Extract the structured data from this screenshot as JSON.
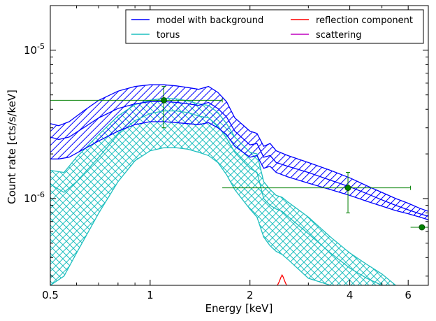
{
  "chart_data": {
    "type": "line",
    "xlabel": "Energy [keV]",
    "ylabel": "Count rate [cts/s/keV]",
    "xscale": "log",
    "yscale": "log",
    "xlim": [
      0.5,
      6.9
    ],
    "ylim": [
      2.6e-07,
      2e-05
    ],
    "x_ticks": [
      {
        "value": 0.5,
        "label": "0.5"
      },
      {
        "value": 1,
        "label": "1"
      },
      {
        "value": 2,
        "label": "2"
      },
      {
        "value": 4,
        "label": "4"
      },
      {
        "value": 6,
        "label": "6"
      }
    ],
    "y_ticks": [
      {
        "value": 1e-06,
        "base": "10",
        "exp": "-6"
      },
      {
        "value": 1e-05,
        "base": "10",
        "exp": "-5"
      }
    ],
    "legend": {
      "placement": "top-right",
      "columns": 2,
      "entries": [
        {
          "label": "model with background",
          "color": "#0000ff"
        },
        {
          "label": "torus",
          "color": "#1fbfbf"
        },
        {
          "label": "reflection component",
          "color": "#ff0000"
        },
        {
          "label": "scattering",
          "color": "#bf00bf"
        }
      ]
    },
    "series": [
      {
        "name": "model with background",
        "color": "#0000ff",
        "x": [
          0.5,
          0.53,
          0.57,
          0.63,
          0.7,
          0.8,
          0.9,
          1.0,
          1.1,
          1.2,
          1.3,
          1.4,
          1.5,
          1.6,
          1.7,
          1.8,
          2.0,
          2.1,
          2.2,
          2.3,
          2.4,
          2.6,
          3.0,
          3.5,
          4.0,
          4.5,
          5.0,
          5.5,
          6.0,
          6.5,
          6.9
        ],
        "upper": [
          3.2e-06,
          3.1e-06,
          3.3e-06,
          3.9e-06,
          4.6e-06,
          5.3e-06,
          5.7e-06,
          5.85e-06,
          5.85e-06,
          5.75e-06,
          5.6e-06,
          5.45e-06,
          5.7e-06,
          5.2e-06,
          4.5e-06,
          3.5e-06,
          2.85e-06,
          2.75e-06,
          2.25e-06,
          2.35e-06,
          2.1e-06,
          1.95e-06,
          1.75e-06,
          1.55e-06,
          1.38e-06,
          1.22e-06,
          1.1e-06,
          1e-06,
          9.3e-07,
          8.6e-07,
          8.2e-07
        ],
        "center": [
          2.6e-06,
          2.5e-06,
          2.6e-06,
          3e-06,
          3.5e-06,
          4.05e-06,
          4.35e-06,
          4.5e-06,
          4.5e-06,
          4.45e-06,
          4.35e-06,
          4.25e-06,
          4.45e-06,
          4.05e-06,
          3.55e-06,
          2.85e-06,
          2.3e-06,
          2.35e-06,
          1.9e-06,
          1.95e-06,
          1.75e-06,
          1.65e-06,
          1.5e-06,
          1.33e-06,
          1.2e-06,
          1.08e-06,
          9.8e-07,
          9e-07,
          8.4e-07,
          7.9e-07,
          7.6e-07
        ],
        "lower": [
          1.85e-06,
          1.85e-06,
          1.9e-06,
          2.15e-06,
          2.45e-06,
          2.85e-06,
          3.15e-06,
          3.3e-06,
          3.3e-06,
          3.25e-06,
          3.2e-06,
          3.15e-06,
          3.25e-06,
          3e-06,
          2.7e-06,
          2.25e-06,
          1.9e-06,
          1.95e-06,
          1.6e-06,
          1.65e-06,
          1.5e-06,
          1.4e-06,
          1.27e-06,
          1.15e-06,
          1.05e-06,
          9.6e-07,
          8.9e-07,
          8.3e-07,
          7.9e-07,
          7.5e-07,
          7.2e-07
        ]
      },
      {
        "name": "torus",
        "color": "#1fbfbf",
        "x": [
          0.5,
          0.55,
          0.6,
          0.7,
          0.8,
          0.9,
          1.0,
          1.1,
          1.2,
          1.3,
          1.4,
          1.5,
          1.6,
          1.7,
          1.8,
          2.0,
          2.1,
          2.2,
          2.3,
          2.4,
          2.5,
          2.6,
          3.0,
          3.5,
          4.0,
          4.5,
          5.0,
          5.5
        ],
        "upper": [
          1.55e-06,
          1.5e-06,
          1.9e-06,
          2.7e-06,
          3.6e-06,
          4.3e-06,
          4.6e-06,
          4.75e-06,
          4.7e-06,
          4.55e-06,
          4.35e-06,
          4.25e-06,
          3.8e-06,
          3.2e-06,
          2.6e-06,
          2.05e-06,
          2e-06,
          1.3e-06,
          1.15e-06,
          1.05e-06,
          1.02e-06,
          9.5e-07,
          7.5e-07,
          5.5e-07,
          4.3e-07,
          3.6e-07,
          3.1e-07,
          2.6e-07
        ],
        "center": [
          1.25e-06,
          1.1e-06,
          1.3e-06,
          1.9e-06,
          2.7e-06,
          3.35e-06,
          3.75e-06,
          3.9e-06,
          3.9e-06,
          3.8e-06,
          3.6e-06,
          3.5e-06,
          3.1e-06,
          2.55e-06,
          2.05e-06,
          1.6e-06,
          1.5e-06,
          1e-06,
          9e-07,
          8.5e-07,
          8.2e-07,
          7.6e-07,
          5.8e-07,
          4.3e-07,
          3.4e-07,
          2.9e-07,
          2.6e-07,
          2.6e-07
        ],
        "lower": [
          2.6e-07,
          3e-07,
          4.3e-07,
          8e-07,
          1.3e-06,
          1.8e-06,
          2.1e-06,
          2.2e-06,
          2.2e-06,
          2.15e-06,
          2.05e-06,
          1.95e-06,
          1.75e-06,
          1.45e-06,
          1.15e-06,
          8.5e-07,
          7.5e-07,
          5.5e-07,
          4.8e-07,
          4.4e-07,
          4.2e-07,
          3.9e-07,
          2.9e-07,
          2.6e-07,
          2.6e-07,
          2.6e-07,
          2.6e-07,
          2.6e-07
        ]
      },
      {
        "name": "reflection component",
        "color": "#ff0000",
        "x": [
          2.42,
          2.45,
          2.48,
          2.5,
          2.52,
          2.55,
          2.58
        ],
        "values": [
          2.6e-07,
          2.75e-07,
          2.95e-07,
          3.05e-07,
          2.95e-07,
          2.75e-07,
          2.6e-07
        ]
      }
    ],
    "data_points": [
      {
        "x": 1.1,
        "y": 4.6e-06,
        "xerr": [
          0.5,
          1.65
        ],
        "yerr": [
          3e-06,
          5.7e-06
        ],
        "color": "#008000"
      },
      {
        "x": 3.95,
        "y": 1.18e-06,
        "xerr": [
          1.65,
          6.1
        ],
        "yerr": [
          8e-07,
          1.5e-06
        ],
        "color": "#008000"
      },
      {
        "x": 6.6,
        "y": 6.4e-07,
        "xerr": [
          6.1,
          6.9
        ],
        "yerr": [
          6.4e-07,
          6.4e-07
        ],
        "color": "#008000"
      }
    ],
    "grid": false
  }
}
